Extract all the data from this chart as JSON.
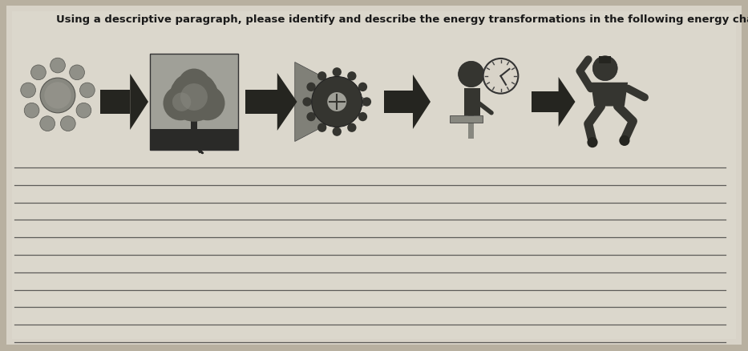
{
  "title": "Using a descriptive paragraph, please identify and describe the energy transformations in the following energy chain:",
  "title_fontsize": 9.5,
  "title_color": "#1a1a1a",
  "bg_color": "#b8b0a0",
  "paper_color": "#ddd8cc",
  "paper_color2": "#ccc8bc",
  "line_color": "#333333",
  "num_lines": 11,
  "fig_width": 9.33,
  "fig_height": 4.39,
  "icon_gray": "#4a4a4a",
  "arrow_color": "#252525",
  "sun_color": "#888880",
  "tree_color": "#555550",
  "gear_arrow_color": "#444440"
}
